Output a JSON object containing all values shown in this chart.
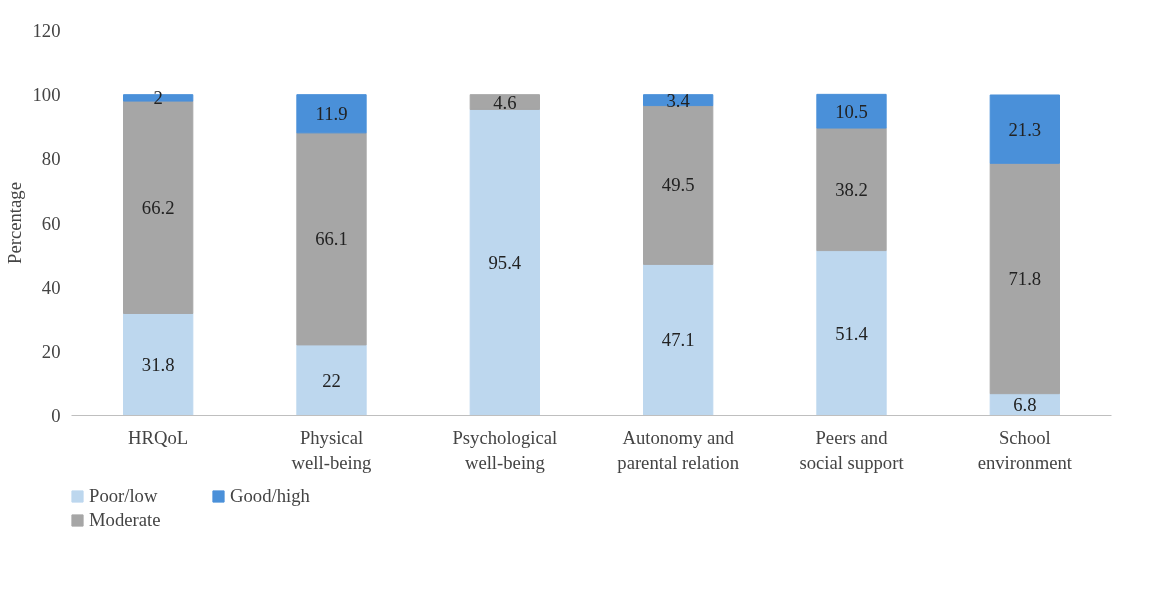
{
  "chart_data": {
    "type": "bar",
    "stacked": true,
    "ylabel": "Percentage",
    "categories": [
      "HRQoL",
      "Physical well-being",
      "Psychological well-being",
      "Autonomy and parental relation",
      "Peers and social support",
      "School environment"
    ],
    "series": [
      {
        "name": "Poor/low",
        "color": "#bdd7ee",
        "values": [
          31.8,
          22,
          95.4,
          47.1,
          51.4,
          6.8
        ]
      },
      {
        "name": "Moderate",
        "color": "#a6a6a6",
        "values": [
          66.2,
          66.1,
          4.6,
          49.5,
          38.2,
          71.8
        ]
      },
      {
        "name": "Good/high",
        "color": "#4a90d9",
        "values": [
          2,
          11.9,
          null,
          3.4,
          10.5,
          21.3
        ]
      }
    ],
    "ylim": [
      0,
      120
    ],
    "yticks": [
      0,
      20,
      40,
      60,
      80,
      100,
      120
    ],
    "grid": false,
    "data_labels": true,
    "legend": "bottom"
  }
}
